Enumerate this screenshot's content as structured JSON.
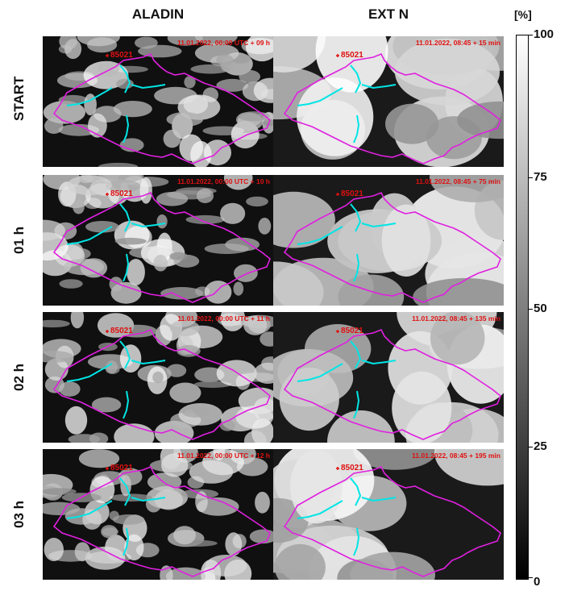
{
  "columns": {
    "left": "ALADIN",
    "right": "EXT N"
  },
  "rows": [
    {
      "label": "START",
      "aladin_stamp": "11.01.2022, 00:00 UTC + 09 h",
      "extn_stamp": "11.01.2022, 08:45 + 15 min"
    },
    {
      "label": "01 h",
      "aladin_stamp": "11.01.2022, 00:00 UTC + 10 h",
      "extn_stamp": "11.01.2022, 08:45 + 75 min"
    },
    {
      "label": "02 h",
      "aladin_stamp": "11.01.2022, 00:00 UTC + 11 h",
      "extn_stamp": "11.01.2022, 08:45 + 135 min"
    },
    {
      "label": "03 h",
      "aladin_stamp": "11.01.2022, 00:00 UTC + 12 h",
      "extn_stamp": "11.01.2022, 08:45 + 195 min"
    }
  ],
  "station_id": "85021",
  "colorbar": {
    "unit": "[%]",
    "ticks": [
      "100",
      "75",
      "50",
      "25",
      "0"
    ],
    "colors": {
      "top": "#ffffff",
      "bottom": "#000000"
    }
  },
  "colors": {
    "border": "#e020e0",
    "rivers": "#00e5e5",
    "station": "#e01010"
  }
}
